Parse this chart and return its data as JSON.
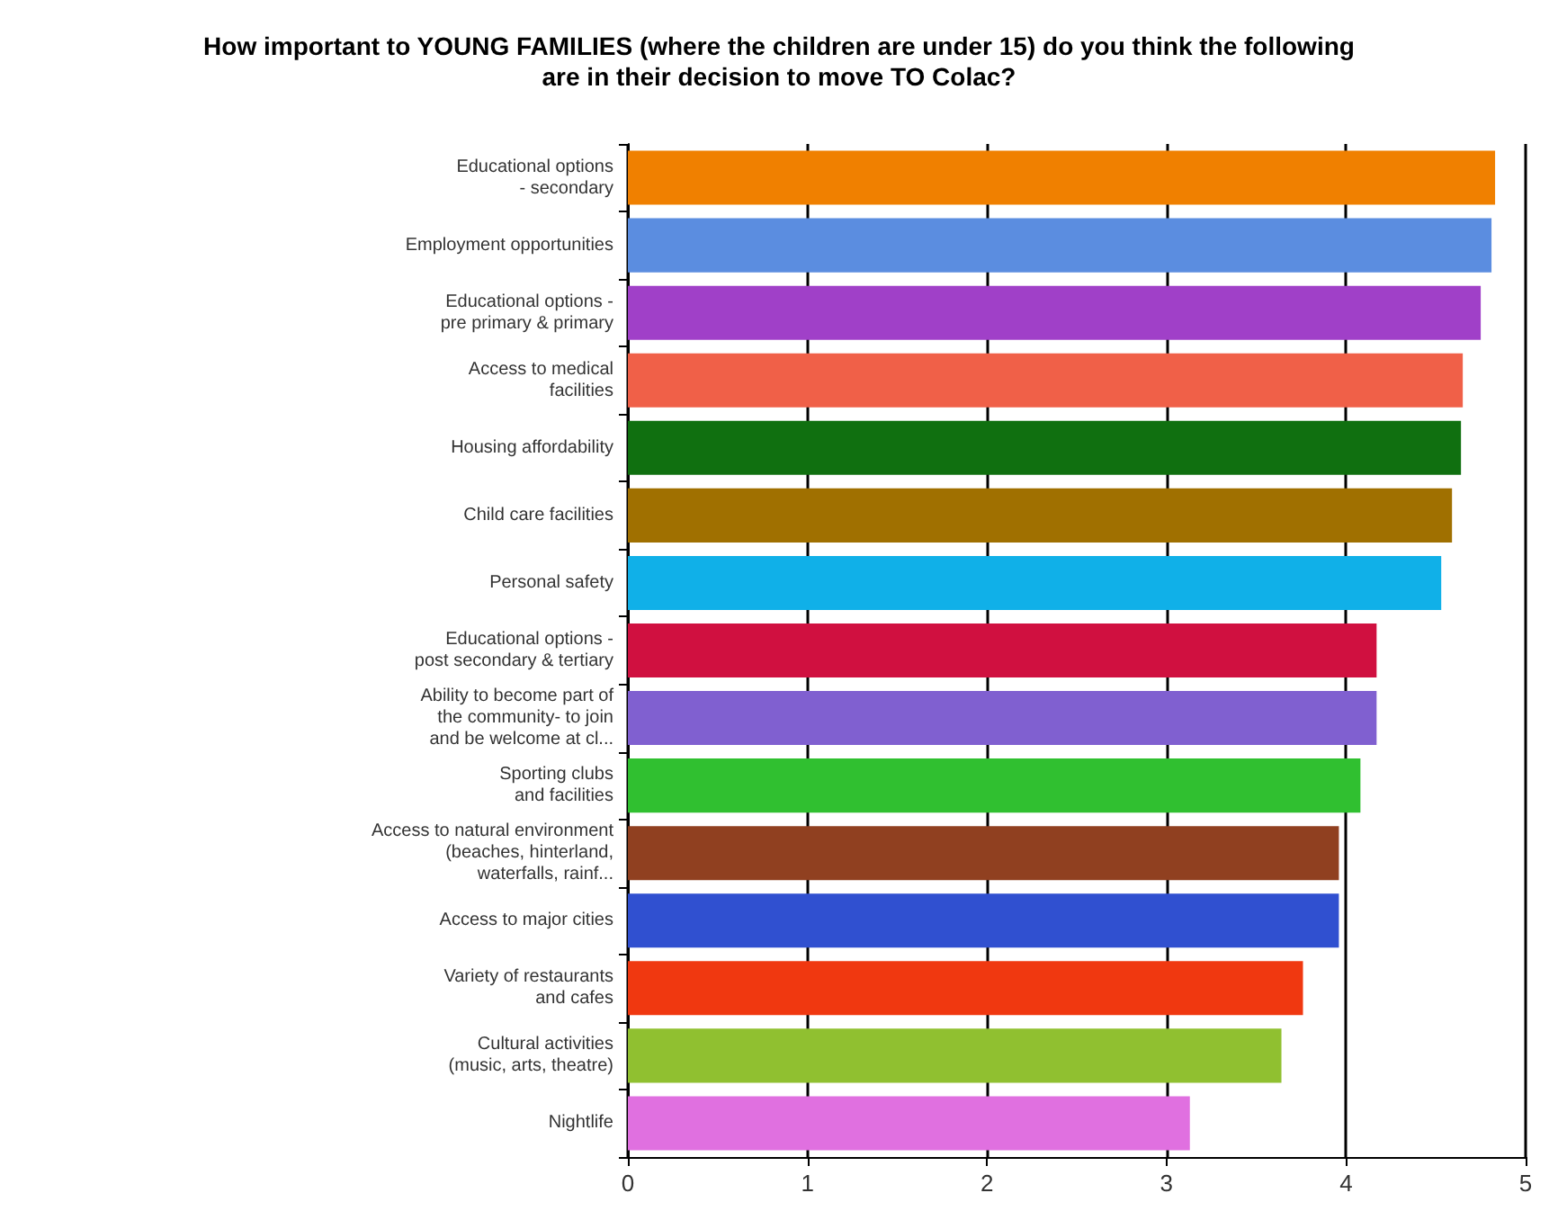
{
  "chart_data": {
    "type": "bar",
    "orientation": "horizontal",
    "title": "How important to YOUNG FAMILIES (where the children are under 15) do you think the following\nare in their decision to move TO Colac?",
    "categories": [
      "Educational options\n- secondary",
      "Employment opportunities",
      "Educational options -\npre primary & primary",
      "Access to medical\nfacilities",
      "Housing affordability",
      "Child care facilities",
      "Personal safety",
      "Educational options -\npost secondary & tertiary",
      "Ability to become part of\nthe community- to join\nand be welcome at cl...",
      "Sporting clubs\nand facilities",
      "Access to natural environment\n(beaches, hinterland,\nwaterfalls, rainf...",
      "Access to major cities",
      "Variety of restaurants\nand cafes",
      "Cultural activities\n(music, arts, theatre)",
      "Nightlife"
    ],
    "values": [
      4.83,
      4.81,
      4.75,
      4.65,
      4.64,
      4.59,
      4.53,
      4.17,
      4.17,
      4.08,
      3.96,
      3.96,
      3.76,
      3.64,
      3.13
    ],
    "colors": [
      "#f08000",
      "#5b8de0",
      "#a040c8",
      "#f06048",
      "#107010",
      "#a07000",
      "#10b0e8",
      "#d01040",
      "#8060d0",
      "#30c030",
      "#904020",
      "#3050d0",
      "#f03810",
      "#90c030",
      "#e070e0"
    ],
    "xlim": [
      0,
      5
    ],
    "xticks": [
      0,
      1,
      2,
      3,
      4,
      5
    ],
    "grid": "x"
  }
}
